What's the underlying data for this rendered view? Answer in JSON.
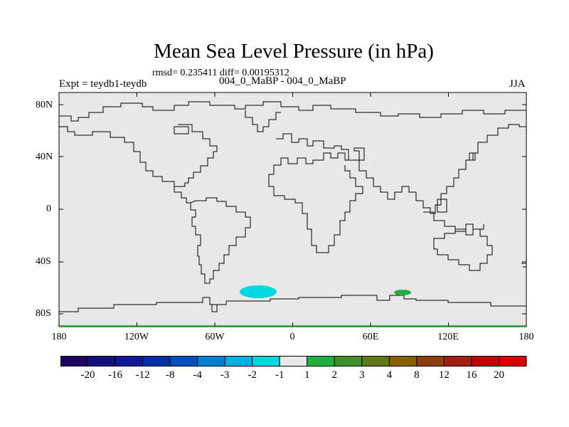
{
  "title": "Mean Sea Level Pressure (in hPa)",
  "stats": "rmsd= 0.235411 diff= 0.00195312",
  "expt": "Expt = teydb1-teydb",
  "center_label": "004_0_MaBP - 004_0_MaBP",
  "season": "JJA",
  "y_axis": {
    "ticks": [
      "80N",
      "40N",
      "0",
      "40S",
      "80S"
    ]
  },
  "x_axis": {
    "ticks": [
      "180",
      "120W",
      "60W",
      "0",
      "60E",
      "120E",
      "180"
    ]
  },
  "colors": {
    "background": "#e8e8e8",
    "coastline": "#000000",
    "anomaly_negative": "#00d8e0",
    "anomaly_positive": "#20b040",
    "bottom_edge": "#20b040"
  },
  "anomalies": [
    {
      "name": "negative-anomaly",
      "level": "-2 to -1",
      "lon": -30,
      "lat": -63
    },
    {
      "name": "positive-anomaly",
      "level": "1 to 2",
      "lon": 88,
      "lat": -63
    }
  ],
  "colorbar": {
    "labels": [
      "-20",
      "-16",
      "-12",
      "-8",
      "-4",
      "-3",
      "-2",
      "-1",
      "1",
      "2",
      "3",
      "4",
      "8",
      "12",
      "16",
      "20"
    ],
    "colors": [
      "#200060",
      "#10107a",
      "#101898",
      "#0030a8",
      "#0050c0",
      "#0080d0",
      "#00b0e0",
      "#00d8e0",
      "#e8e8e8",
      "#20b040",
      "#40902c",
      "#607818",
      "#886000",
      "#8c4010",
      "#a02010",
      "#c00808",
      "#d80000"
    ]
  }
}
